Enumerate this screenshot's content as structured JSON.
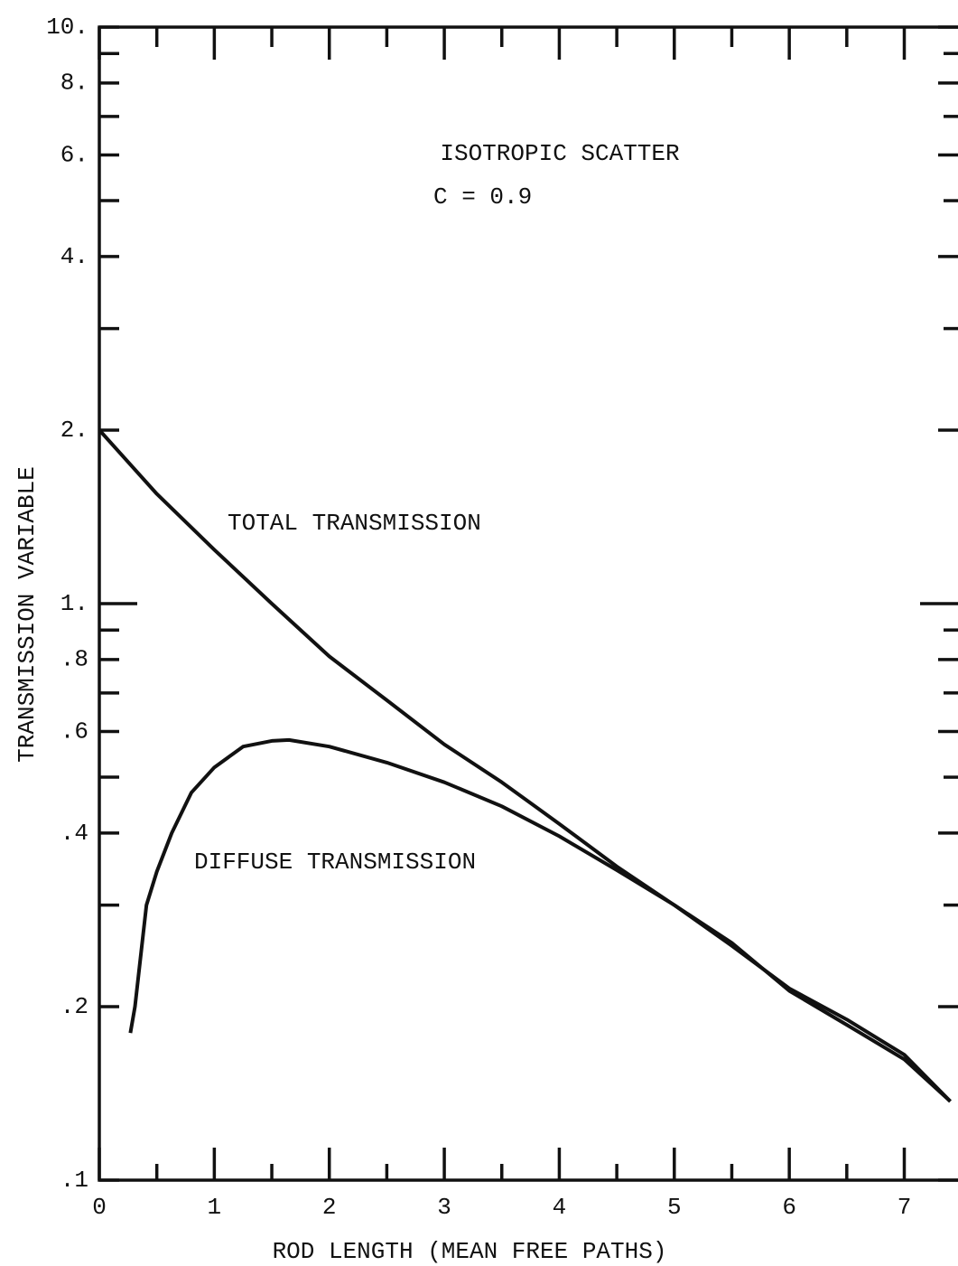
{
  "chart_data": {
    "type": "line",
    "xlabel": "ROD LENGTH (MEAN FREE PATHS)",
    "ylabel": "TRANSMISSION VARIABLE",
    "annotations": [
      "ISOTROPIC SCATTER",
      "C = 0.9",
      "TOTAL TRANSMISSION",
      "DIFFUSE TRANSMISSION"
    ],
    "ylog": true,
    "xlim": [
      0,
      7.42
    ],
    "ylim": [
      0.1,
      10
    ],
    "xticks": [
      0,
      1,
      2,
      3,
      4,
      5,
      6,
      7
    ],
    "xminor_ticks": [
      0.5,
      1.5,
      2.5,
      3.5,
      4.5,
      5.5,
      6.5
    ],
    "yticks": [
      {
        "value": 10,
        "label": "10."
      },
      {
        "value": 8,
        "label": "8."
      },
      {
        "value": 6,
        "label": "6."
      },
      {
        "value": 4,
        "label": "4."
      },
      {
        "value": 2,
        "label": "2."
      },
      {
        "value": 1,
        "label": "1."
      },
      {
        "value": 0.8,
        "label": ".8"
      },
      {
        "value": 0.6,
        "label": ".6"
      },
      {
        "value": 0.4,
        "label": ".4"
      },
      {
        "value": 0.2,
        "label": ".2"
      },
      {
        "value": 0.1,
        "label": ".1"
      }
    ],
    "yminor_ticks": [
      9,
      7,
      5,
      3,
      0.9,
      0.7,
      0.5,
      0.3
    ],
    "series": [
      {
        "name": "TOTAL TRANSMISSION",
        "color": "#111111",
        "x": [
          0,
          0.5,
          1,
          1.5,
          2,
          2.5,
          3,
          3.5,
          4,
          4.5,
          5,
          5.5,
          6,
          6.5,
          7,
          7.4
        ],
        "values": [
          2.0,
          1.55,
          1.24,
          1.0,
          0.81,
          0.68,
          0.57,
          0.49,
          0.415,
          0.35,
          0.3,
          0.255,
          0.215,
          0.19,
          0.165,
          0.137
        ]
      },
      {
        "name": "DIFFUSE TRANSMISSION",
        "color": "#111111",
        "x": [
          0.27,
          0.31,
          0.41,
          0.5,
          0.63,
          0.8,
          1,
          1.25,
          1.5,
          1.65,
          2,
          2.5,
          3,
          3.5,
          4,
          4.5,
          5,
          5.5,
          6,
          6.5,
          7,
          7.4
        ],
        "values": [
          0.18,
          0.2,
          0.3,
          0.343,
          0.4,
          0.47,
          0.52,
          0.565,
          0.578,
          0.58,
          0.565,
          0.53,
          0.49,
          0.445,
          0.395,
          0.345,
          0.3,
          0.258,
          0.213,
          0.186,
          0.162,
          0.137
        ]
      }
    ]
  }
}
